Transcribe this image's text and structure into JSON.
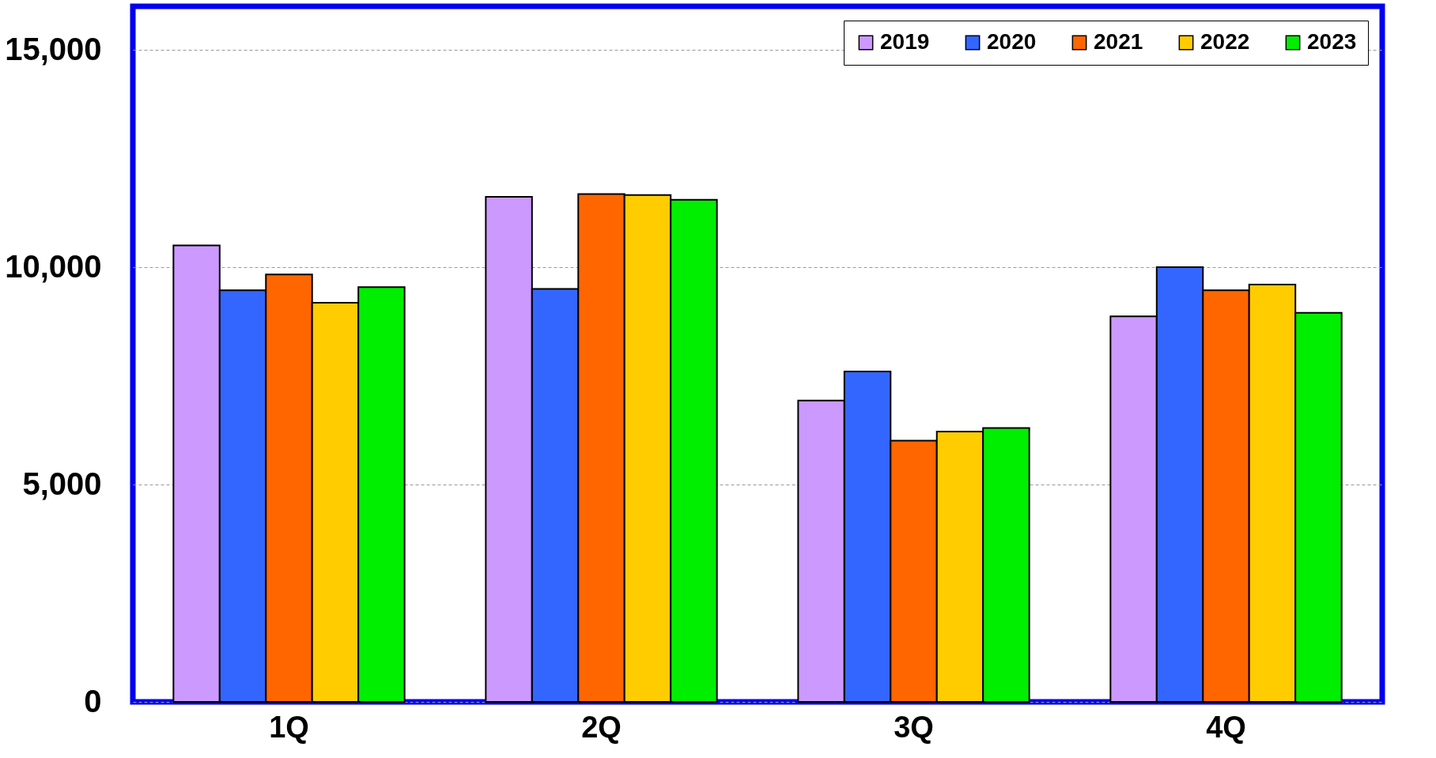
{
  "chart_data": {
    "type": "bar",
    "categories": [
      "1Q",
      "2Q",
      "3Q",
      "4Q"
    ],
    "series": [
      {
        "name": "2019",
        "color": "#cc99ff",
        "values": [
          10500,
          11620,
          6930,
          8870
        ]
      },
      {
        "name": "2020",
        "color": "#3366ff",
        "values": [
          9470,
          9500,
          7600,
          10000
        ]
      },
      {
        "name": "2021",
        "color": "#ff6600",
        "values": [
          9830,
          11680,
          6010,
          9470
        ]
      },
      {
        "name": "2022",
        "color": "#ffcc00",
        "values": [
          9180,
          11660,
          6220,
          9600
        ]
      },
      {
        "name": "2023",
        "color": "#00ee00",
        "values": [
          9540,
          11550,
          6300,
          8950
        ]
      }
    ],
    "ylim": [
      0,
      16000
    ],
    "yticks": [
      0,
      {
        "value": 5000,
        "label": "5,000"
      },
      {
        "value": 10000,
        "label": "10,000"
      },
      {
        "value": 15000,
        "label": "15,000"
      }
    ],
    "grid": "y",
    "legend": "top right"
  }
}
